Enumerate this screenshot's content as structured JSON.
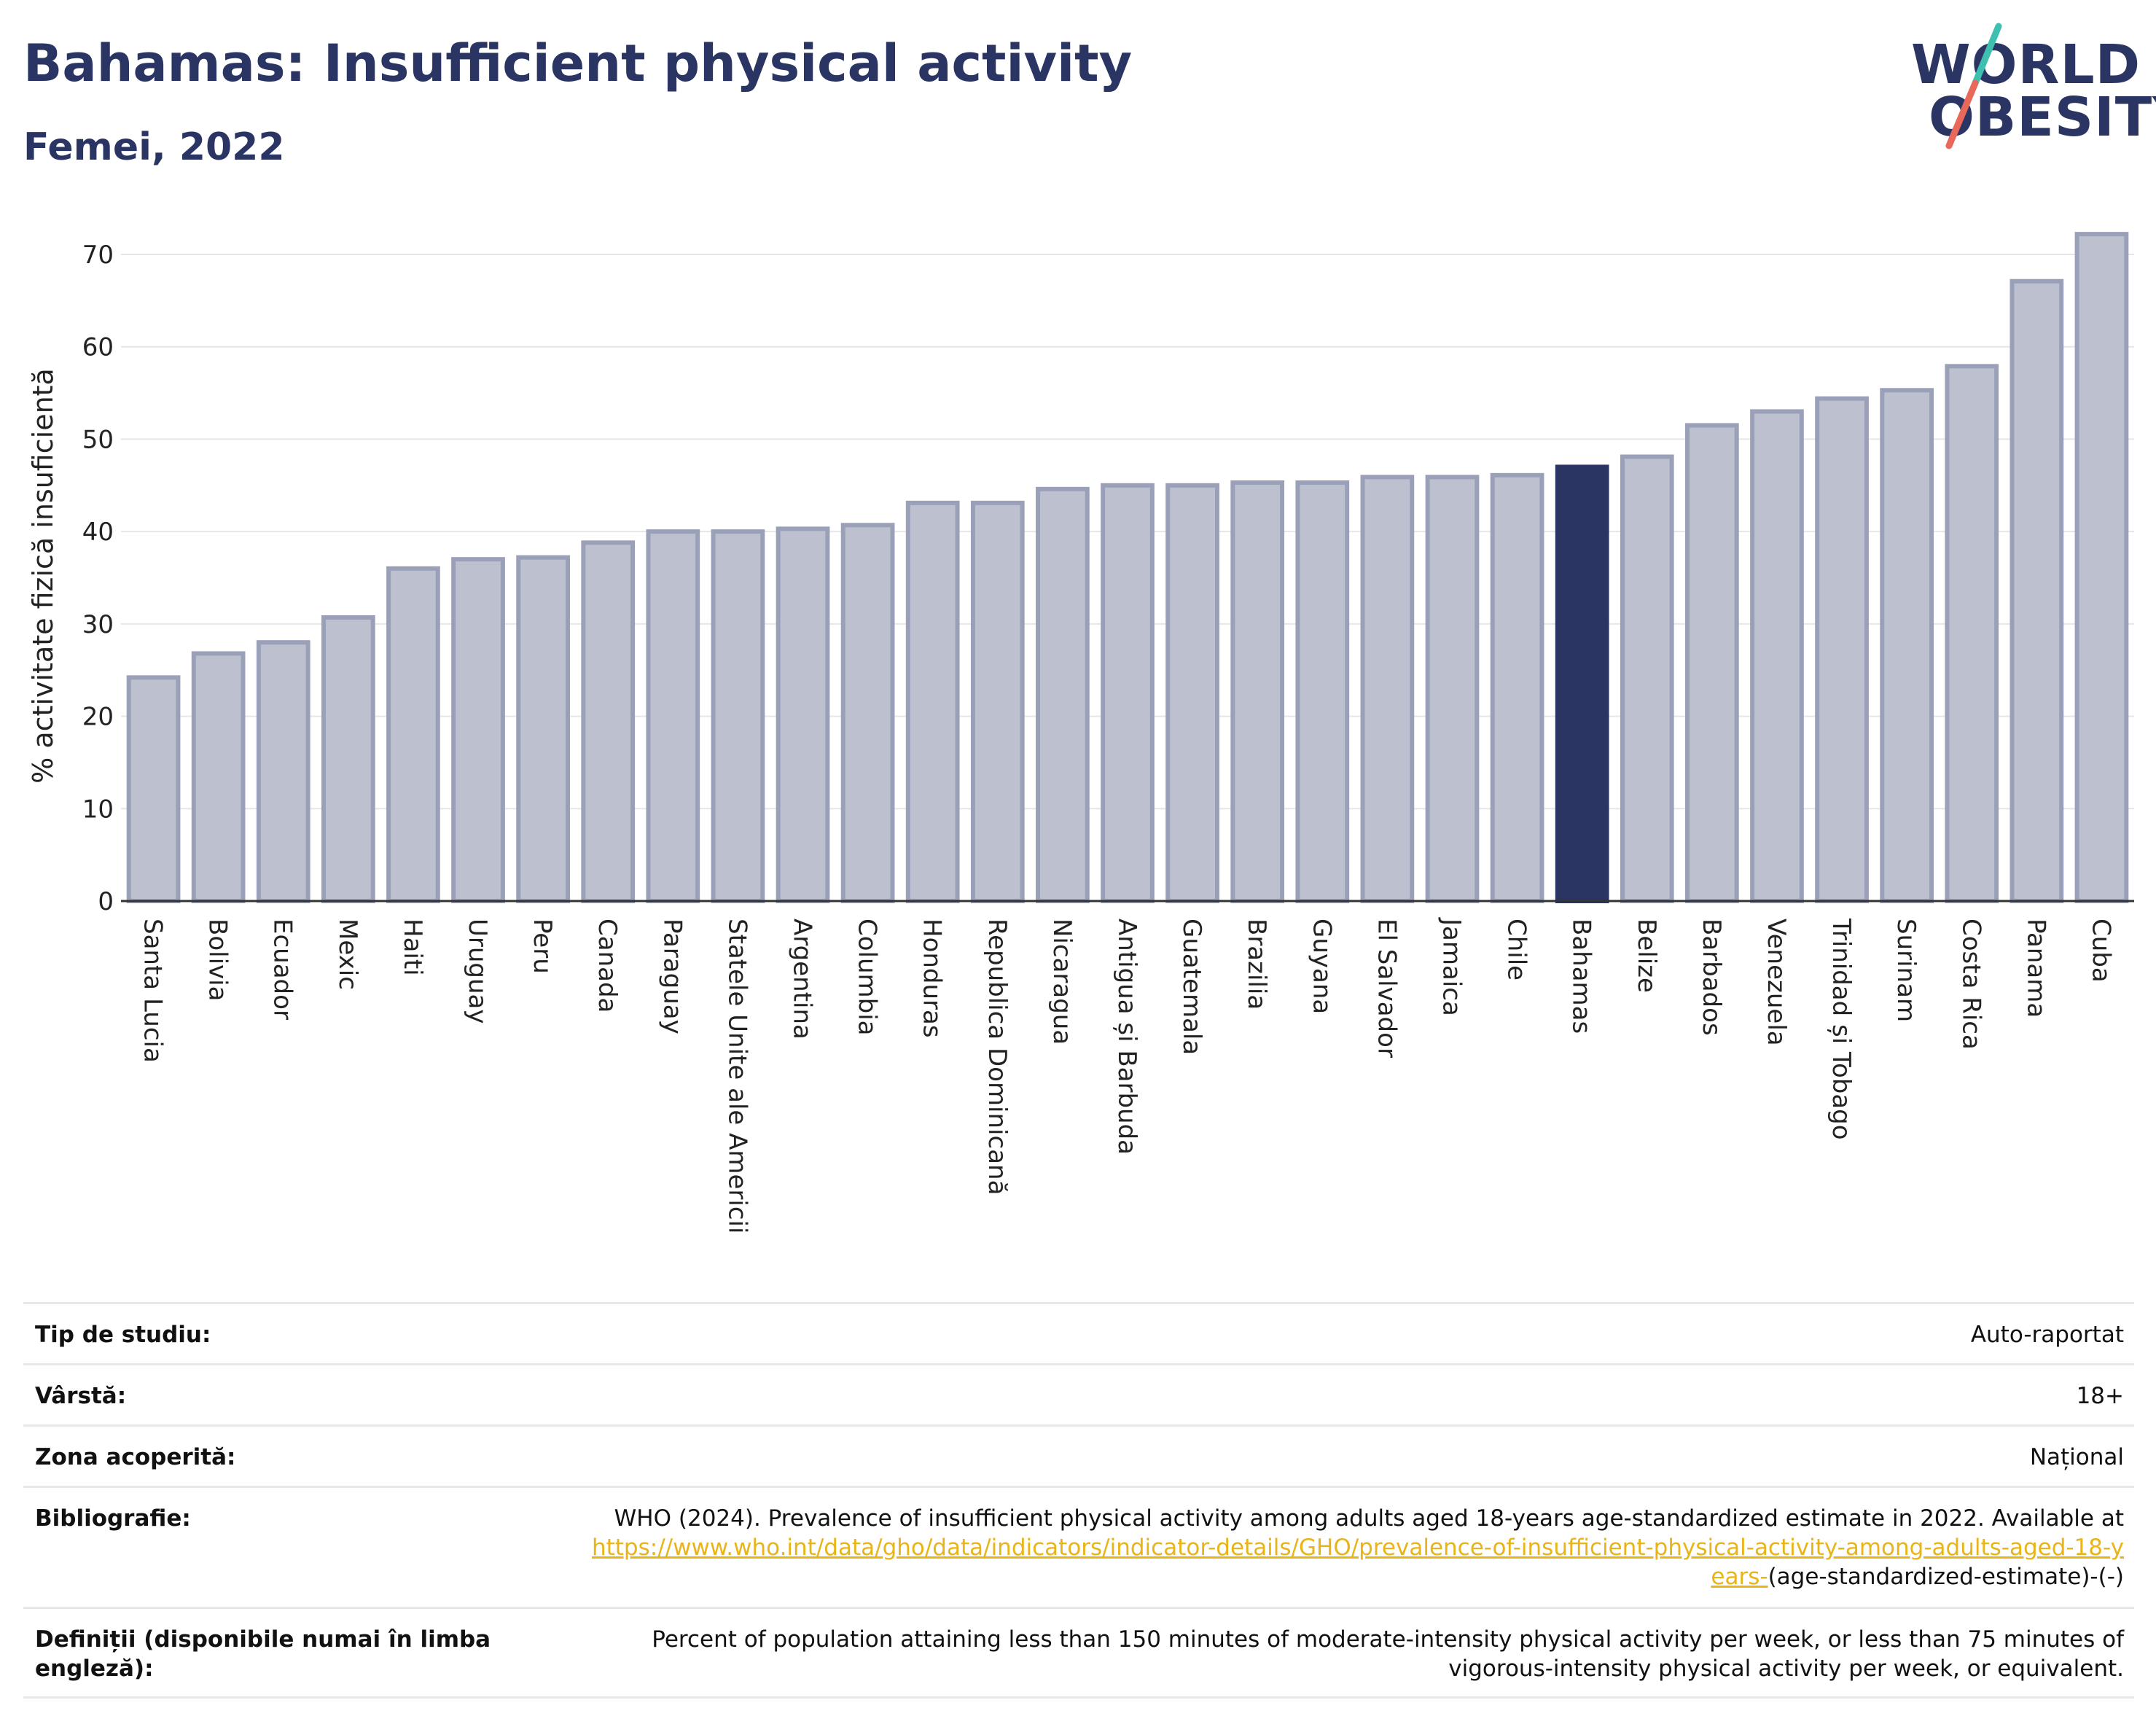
{
  "header": {
    "title": "Bahamas: Insufficient physical activity",
    "subtitle": "Femei, 2022"
  },
  "logo": {
    "line1": "WORLD",
    "line2": "OBESITY",
    "colors": {
      "text": "#2b3563",
      "slash_top": "#3fbfb0",
      "slash_bottom": "#e8685a"
    }
  },
  "chart_data": {
    "type": "bar",
    "ylabel": "% activitate fizică insuficientă",
    "xlabel": "",
    "ylim": [
      0,
      72
    ],
    "yticks": [
      0,
      10,
      20,
      30,
      40,
      50,
      60,
      70
    ],
    "grid": true,
    "highlight": "Bahamas",
    "colors": {
      "bar": "#bcc0cf",
      "bar_border": "#9aa0b8",
      "highlight": "#2b3563",
      "grid": "#e6e6e6",
      "axis": "#333333"
    },
    "categories": [
      "Santa Lucia",
      "Bolivia",
      "Ecuador",
      "Mexic",
      "Haiti",
      "Uruguay",
      "Peru",
      "Canada",
      "Paraguay",
      "Statele Unite ale Americii",
      "Argentina",
      "Columbia",
      "Honduras",
      "Republica Dominicană",
      "Nicaragua",
      "Antigua și Barbuda",
      "Guatemala",
      "Brazilia",
      "Guyana",
      "El Salvador",
      "Jamaica",
      "Chile",
      "Bahamas",
      "Belize",
      "Barbados",
      "Venezuela",
      "Trinidad și Tobago",
      "Surinam",
      "Costa Rica",
      "Panama",
      "Cuba"
    ],
    "values": [
      24.2,
      26.8,
      28.0,
      30.7,
      36.0,
      37.0,
      37.2,
      38.8,
      40.0,
      40.0,
      40.3,
      40.7,
      43.1,
      43.1,
      44.6,
      45.0,
      45.0,
      45.3,
      45.3,
      45.9,
      45.9,
      46.1,
      47.0,
      48.1,
      51.5,
      53.0,
      54.4,
      55.3,
      57.9,
      67.1,
      72.2
    ]
  },
  "meta": {
    "rows": [
      {
        "label": "Tip de studiu:",
        "value": "Auto-raportat"
      },
      {
        "label": "Vârstă:",
        "value": "18+"
      },
      {
        "label": "Zona acoperită:",
        "value": "Național"
      },
      {
        "label": "Bibliografie:",
        "value_prefix": "WHO (2024). Prevalence of insufficient physical activity among adults aged 18-years age-standardized estimate in 2022. Available at",
        "link": "https://www.who.int/data/gho/data/indicators/indicator-details/GHO/prevalence-of-insufficient-physical-activity-among-adults-aged-18-years-",
        "value_suffix": "(age-standardized-estimate)-(-)"
      },
      {
        "label": "Definiții (disponibile numai în limba engleză):",
        "value": "Percent of population attaining less than 150 minutes of moderate-intensity physical activity per week, or less than 75 minutes of vigorous-intensity physical activity per week, or equivalent."
      }
    ]
  }
}
